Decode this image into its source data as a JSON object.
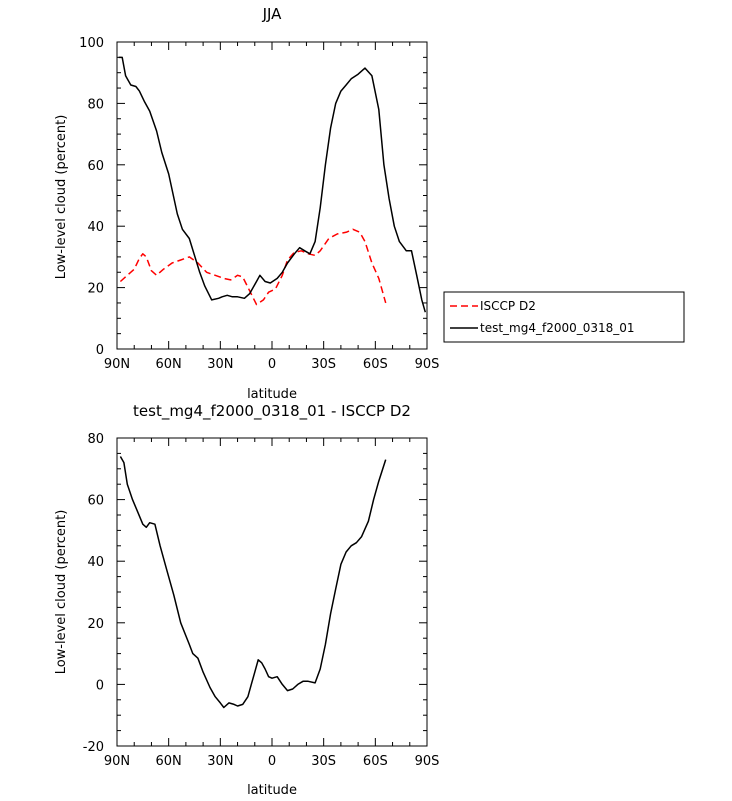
{
  "chart_data": [
    {
      "type": "line",
      "title": "JJA",
      "xlabel": "latitude",
      "ylabel": "Low-level cloud (percent)",
      "xlim": [
        90,
        -90
      ],
      "ylim": [
        0,
        100
      ],
      "x_ticks": [
        90,
        60,
        30,
        0,
        -30,
        -60,
        -90
      ],
      "x_tick_labels": [
        "90N",
        "60N",
        "30N",
        "0",
        "30S",
        "60S",
        "90S"
      ],
      "y_ticks": [
        0,
        20,
        40,
        60,
        80,
        100
      ],
      "y_tick_labels": [
        "0",
        "20",
        "40",
        "60",
        "80",
        "100"
      ],
      "legend": {
        "placement": "right, outside plot",
        "entries": [
          "ISCCP D2",
          "test_mg4_f2000_0318_01"
        ]
      },
      "series": [
        {
          "name": "ISCCP D2",
          "color": "#ff0000",
          "dash": "dashed",
          "x": [
            88,
            84,
            80,
            77,
            75,
            73,
            70,
            67,
            63,
            58,
            53,
            48,
            43,
            38,
            33,
            28,
            24,
            20,
            17,
            13,
            9,
            5,
            2,
            -2,
            -6,
            -9,
            -13,
            -17,
            -21,
            -25,
            -28,
            -33,
            -38,
            -43,
            -47,
            -51,
            -54,
            -58,
            -62,
            -66
          ],
          "y": [
            22,
            24,
            26,
            29.5,
            31,
            30,
            25.5,
            24,
            26,
            28,
            29,
            30,
            28,
            25,
            24,
            23,
            22.5,
            24,
            23.5,
            19,
            14.5,
            16,
            18.5,
            19.5,
            24,
            29,
            31.5,
            32,
            31,
            30.5,
            32,
            36,
            37.5,
            38,
            39,
            38,
            35,
            28,
            23,
            15
          ]
        },
        {
          "name": "test_mg4_f2000_0318_01",
          "color": "#000000",
          "dash": "solid",
          "x": [
            89,
            87,
            85,
            82,
            79,
            77,
            74,
            71,
            67,
            64,
            60,
            55,
            52,
            48,
            42,
            39,
            35,
            31,
            29,
            26,
            23,
            20,
            16,
            13,
            9,
            7,
            4,
            1,
            -3,
            -6,
            -9,
            -13,
            -16,
            -19,
            -22,
            -25,
            -28,
            -31,
            -34,
            -37,
            -40,
            -43,
            -46,
            -50,
            -54,
            -58,
            -62,
            -65,
            -68,
            -71,
            -74,
            -78,
            -81,
            -84,
            -87,
            -89
          ],
          "y": [
            95,
            95,
            89,
            86,
            85.5,
            84,
            80.5,
            77.5,
            71,
            64,
            57,
            44,
            39,
            36,
            25,
            20.5,
            16,
            16.5,
            17,
            17.5,
            17,
            17,
            16.5,
            18,
            22,
            24,
            22,
            21.5,
            23,
            25,
            28,
            31,
            33,
            32,
            31,
            35,
            46,
            60,
            72,
            80,
            84,
            86,
            88,
            89.5,
            91.5,
            89,
            78,
            60,
            49,
            40,
            35,
            32,
            32,
            24,
            16,
            12
          ]
        }
      ]
    },
    {
      "type": "line",
      "title": "test_mg4_f2000_0318_01 - ISCCP D2",
      "xlabel": "latitude",
      "ylabel": "Low-level cloud (percent)",
      "xlim": [
        90,
        -90
      ],
      "ylim": [
        -20,
        80
      ],
      "x_ticks": [
        90,
        60,
        30,
        0,
        -30,
        -60,
        -90
      ],
      "x_tick_labels": [
        "90N",
        "60N",
        "30N",
        "0",
        "30S",
        "60S",
        "90S"
      ],
      "y_ticks": [
        -20,
        0,
        20,
        40,
        60,
        80
      ],
      "y_tick_labels": [
        "-20",
        "0",
        "20",
        "40",
        "60",
        "80"
      ],
      "series": [
        {
          "color": "#000000",
          "dash": "solid",
          "x": [
            88,
            86,
            84,
            81,
            78,
            75,
            73,
            71,
            68,
            65,
            61,
            57,
            53,
            48,
            46,
            43,
            40,
            36,
            33,
            30,
            28,
            25,
            22,
            20,
            17,
            14,
            12,
            10,
            8,
            6,
            4,
            2,
            0,
            -3,
            -6,
            -9,
            -12,
            -15,
            -18,
            -21,
            -25,
            -28,
            -31,
            -34,
            -37,
            -40,
            -43,
            -46,
            -49,
            -52,
            -56,
            -59,
            -62,
            -66
          ],
          "y": [
            74,
            72,
            65,
            60,
            56,
            52,
            51,
            52.5,
            52,
            45,
            37,
            29,
            20,
            13,
            10,
            8.5,
            4,
            -1,
            -4,
            -6,
            -7.5,
            -6,
            -6.5,
            -7,
            -6.5,
            -4,
            0,
            4,
            8,
            7,
            5,
            2.5,
            2,
            2.5,
            0,
            -2,
            -1.5,
            0,
            1,
            1,
            0.5,
            5,
            13,
            23,
            31,
            39,
            43,
            45,
            46,
            48,
            53,
            60,
            66,
            73
          ]
        }
      ]
    }
  ]
}
